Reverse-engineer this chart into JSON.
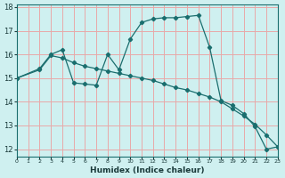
{
  "xlabel": "Humidex (Indice chaleur)",
  "bg_color": "#cff0f0",
  "grid_color": "#e8a8a8",
  "line_color": "#1a6e6e",
  "spine_color": "#1a6e6e",
  "xmin": 0,
  "xmax": 23,
  "ymin": 11.7,
  "ymax": 18.1,
  "yticks": [
    12,
    13,
    14,
    15,
    16,
    17,
    18
  ],
  "xtick_vals": [
    0,
    1,
    2,
    3,
    4,
    5,
    6,
    7,
    8,
    9,
    10,
    11,
    12,
    13,
    14,
    15,
    16,
    17,
    18,
    19,
    20,
    21,
    22,
    23
  ],
  "xtick_labels": [
    "0",
    "1",
    "2",
    "3",
    "4",
    "5",
    "6",
    "7",
    "8",
    "9",
    "10",
    "11",
    "12",
    "13",
    "14",
    "15",
    "16",
    "17",
    "18",
    "19",
    "20",
    "21",
    "22",
    "23"
  ],
  "line1_x": [
    0,
    2,
    3,
    4,
    5,
    6,
    7,
    8,
    9,
    10,
    11,
    12,
    13,
    14,
    15,
    16,
    17,
    18,
    19,
    20,
    21,
    22,
    23
  ],
  "line1_y": [
    15.0,
    15.4,
    16.0,
    16.2,
    14.8,
    14.75,
    14.7,
    16.0,
    15.35,
    16.65,
    17.35,
    17.5,
    17.55,
    17.55,
    17.6,
    17.65,
    16.3,
    14.05,
    13.85,
    13.5,
    12.95,
    12.0,
    12.1
  ],
  "line2_x": [
    0,
    2,
    3,
    4,
    5,
    6,
    7,
    8,
    9,
    10,
    11,
    12,
    13,
    14,
    15,
    16,
    17,
    18,
    19,
    20,
    21,
    22,
    23
  ],
  "line2_y": [
    15.0,
    15.35,
    15.95,
    15.85,
    15.65,
    15.5,
    15.4,
    15.3,
    15.2,
    15.1,
    15.0,
    14.9,
    14.75,
    14.6,
    14.5,
    14.35,
    14.2,
    14.0,
    13.7,
    13.4,
    13.05,
    12.6,
    12.1
  ]
}
